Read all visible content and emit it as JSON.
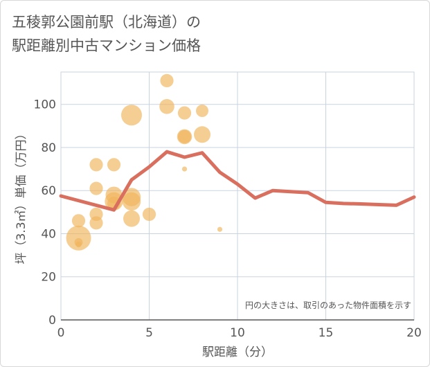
{
  "title": "五稜郭公園前駅（北海道）の\n駅距離別中古マンション価格",
  "chart_data": {
    "type": "scatter",
    "xlabel": "駅距離（分）",
    "ylabel": "坪（3.3㎡）単価（万円）",
    "xlim": [
      0,
      20
    ],
    "ylim": [
      0,
      115
    ],
    "x_ticks": [
      0,
      5,
      10,
      15,
      20
    ],
    "y_ticks": [
      0,
      20,
      40,
      60,
      80,
      100
    ],
    "grid": true,
    "note": "円の大きさは、取引のあった物件面積を示す",
    "colors": {
      "bubble": "#f0b45a",
      "line": "#d9705f",
      "grid": "#c9d3df"
    },
    "bubbles": [
      {
        "x": 1,
        "y": 38,
        "size": 3.0
      },
      {
        "x": 1,
        "y": 46,
        "size": 1.6
      },
      {
        "x": 1,
        "y": 36,
        "size": 1.0
      },
      {
        "x": 1,
        "y": 35,
        "size": 0.7
      },
      {
        "x": 2,
        "y": 72,
        "size": 1.6
      },
      {
        "x": 2,
        "y": 61,
        "size": 1.6
      },
      {
        "x": 2,
        "y": 49,
        "size": 1.6
      },
      {
        "x": 2,
        "y": 45,
        "size": 1.6
      },
      {
        "x": 3,
        "y": 72,
        "size": 1.6
      },
      {
        "x": 3,
        "y": 58,
        "size": 2.0
      },
      {
        "x": 3,
        "y": 55,
        "size": 2.2
      },
      {
        "x": 3,
        "y": 54,
        "size": 1.6
      },
      {
        "x": 4,
        "y": 95,
        "size": 2.5
      },
      {
        "x": 4,
        "y": 57,
        "size": 2.2
      },
      {
        "x": 4,
        "y": 55,
        "size": 2.2
      },
      {
        "x": 4,
        "y": 47,
        "size": 2.0
      },
      {
        "x": 5,
        "y": 49,
        "size": 1.6
      },
      {
        "x": 6,
        "y": 111,
        "size": 1.6
      },
      {
        "x": 6,
        "y": 99,
        "size": 1.8
      },
      {
        "x": 7,
        "y": 96,
        "size": 1.6
      },
      {
        "x": 7,
        "y": 85,
        "size": 1.8
      },
      {
        "x": 7,
        "y": 85,
        "size": 1.6
      },
      {
        "x": 7,
        "y": 70,
        "size": 0.6
      },
      {
        "x": 8,
        "y": 97,
        "size": 1.5
      },
      {
        "x": 8,
        "y": 86,
        "size": 2.0
      },
      {
        "x": 9,
        "y": 42,
        "size": 0.6
      }
    ],
    "series": [
      {
        "x": [
          0,
          3,
          4,
          5,
          6,
          7,
          8,
          9,
          10,
          11,
          12,
          13,
          14,
          15,
          16,
          17,
          18,
          19,
          20
        ],
        "values": [
          57.5,
          51,
          65,
          71,
          78,
          75.5,
          77.5,
          68.5,
          63,
          56.5,
          60,
          59.5,
          59,
          54.5,
          54,
          53.8,
          53.5,
          53.2,
          57
        ]
      }
    ]
  }
}
